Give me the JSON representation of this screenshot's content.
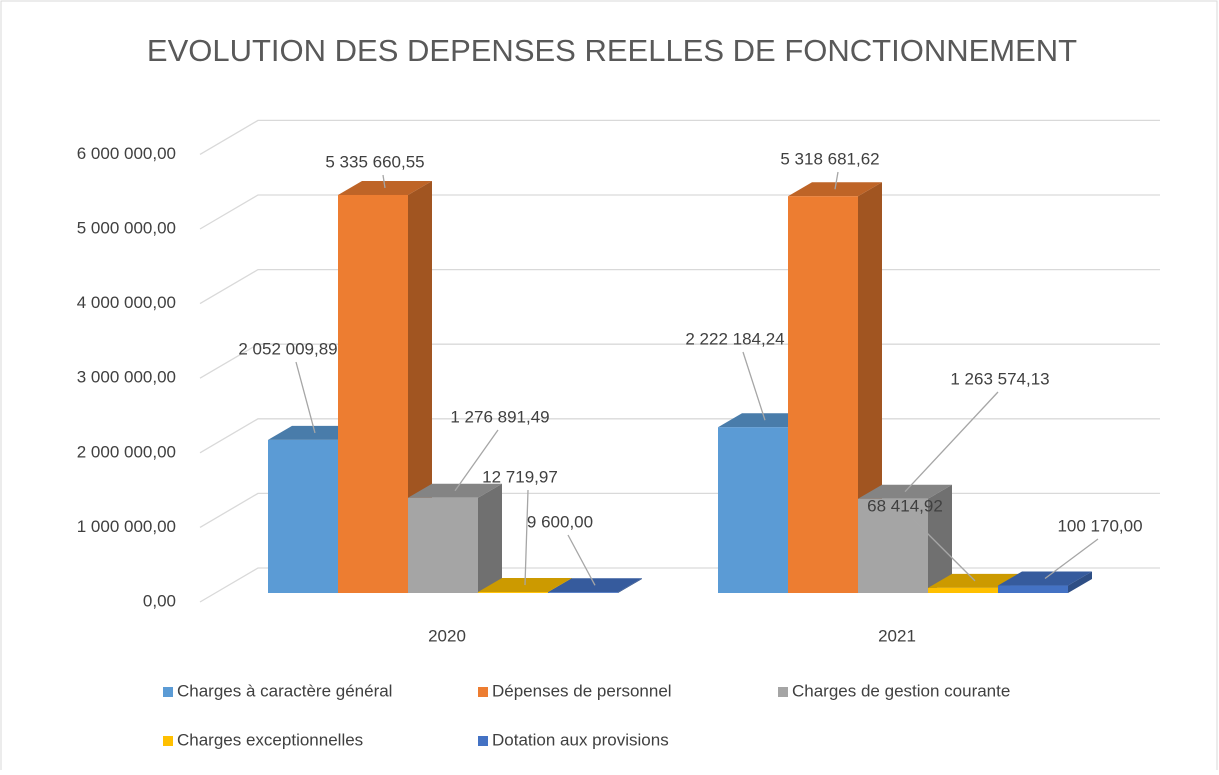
{
  "chart_data": {
    "type": "bar3d",
    "title": "EVOLUTION DES DEPENSES REELLES DE FONCTIONNEMENT",
    "categories": [
      "2020",
      "2021"
    ],
    "series": [
      {
        "name": "Charges à caractère général",
        "color": "#5b9bd5",
        "values": [
          2052009.89,
          2222184.24
        ],
        "value_labels": [
          "2 052 009,89",
          "2 222 184,24"
        ]
      },
      {
        "name": "Dépenses de personnel",
        "color": "#ed7d31",
        "values": [
          5335660.55,
          5318681.62
        ],
        "value_labels": [
          "5 335 660,55",
          "5 318 681,62"
        ]
      },
      {
        "name": "Charges de gestion courante",
        "color": "#a5a5a5",
        "values": [
          1276891.49,
          1263574.13
        ],
        "value_labels": [
          "1 276 891,49",
          "1 263 574,13"
        ]
      },
      {
        "name": "Charges exceptionnelles",
        "color": "#ffc000",
        "values": [
          12719.97,
          68414.92
        ],
        "value_labels": [
          "12 719,97",
          "68 414,92"
        ]
      },
      {
        "name": "Dotation aux provisions",
        "color": "#4472c4",
        "values": [
          9600.0,
          100170.0
        ],
        "value_labels": [
          "9 600,00",
          "100 170,00"
        ]
      }
    ],
    "ylim": [
      0,
      6000000
    ],
    "yticks": [
      {
        "value": 0,
        "label": "0,00"
      },
      {
        "value": 1000000,
        "label": "1 000 000,00"
      },
      {
        "value": 2000000,
        "label": "2 000 000,00"
      },
      {
        "value": 3000000,
        "label": "3 000 000,00"
      },
      {
        "value": 4000000,
        "label": "4 000 000,00"
      },
      {
        "value": 5000000,
        "label": "5 000 000,00"
      },
      {
        "value": 6000000,
        "label": "6 000 000,00"
      }
    ],
    "grid": true,
    "legend": "bottom"
  }
}
